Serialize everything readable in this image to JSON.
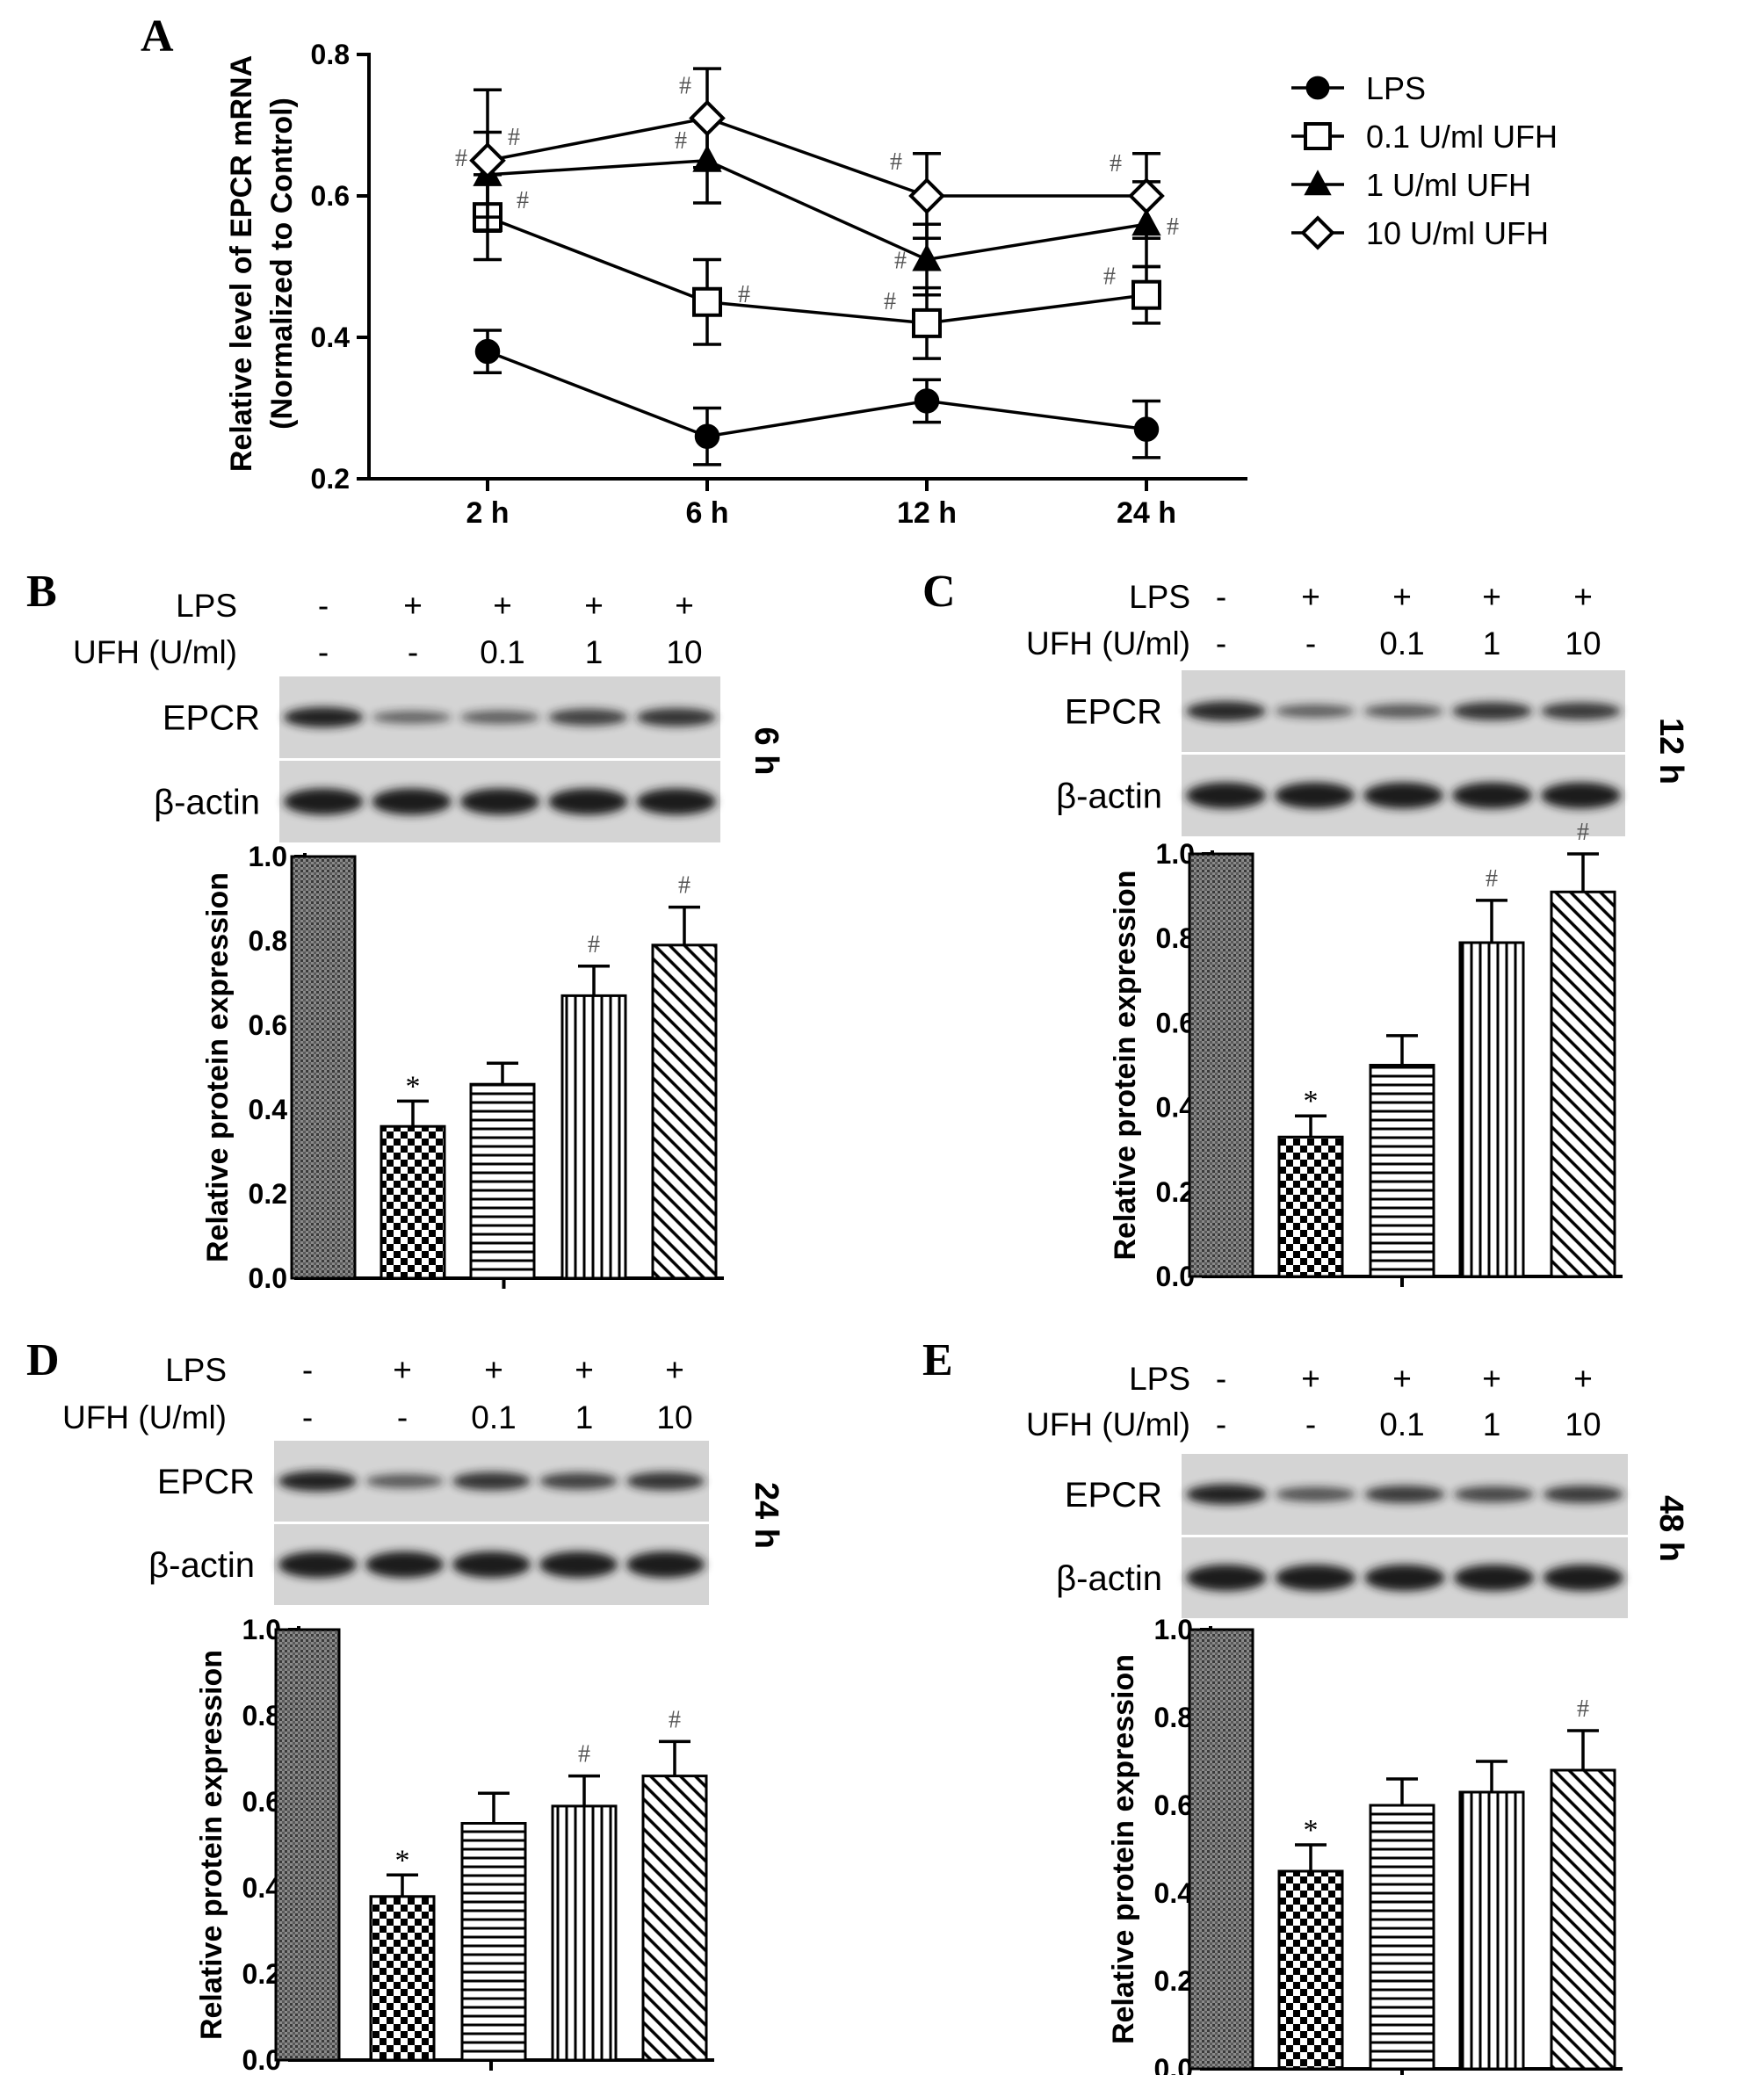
{
  "colors": {
    "ink": "#000000",
    "blot_bg": "#d4d4d4",
    "band": "#1c1c1c",
    "hash_mark": "#555555"
  },
  "panel_a": {
    "letter": "A",
    "ylabel_line1": "Relative level of EPCR mRNA",
    "ylabel_line2": "(Normalized to Control)",
    "legend": [
      "LPS",
      "0.1 U/ml UFH",
      "1 U/ml UFH",
      "10 U/ml UFH"
    ]
  },
  "blot_panels": [
    {
      "letter": "B",
      "time": "6 h",
      "cond_labels": [
        "LPS",
        "UFH (U/ml)"
      ],
      "lps": [
        "-",
        "+",
        "+",
        "+",
        "+"
      ],
      "ufh": [
        "-",
        "-",
        "0.1",
        "1",
        "10"
      ],
      "rows": [
        "EPCR",
        "β-actin"
      ],
      "ylabel": "Relative protein expression",
      "band_strength": [
        0.95,
        0.4,
        0.45,
        0.7,
        0.8
      ]
    },
    {
      "letter": "C",
      "time": "12 h",
      "cond_labels": [
        "LPS",
        "UFH (U/ml)"
      ],
      "lps": [
        "-",
        "+",
        "+",
        "+",
        "+"
      ],
      "ufh": [
        "-",
        "-",
        "0.1",
        "1",
        "10"
      ],
      "rows": [
        "EPCR",
        "β-actin"
      ],
      "ylabel": "Relative protein expression",
      "band_strength": [
        0.9,
        0.45,
        0.5,
        0.8,
        0.75
      ]
    },
    {
      "letter": "D",
      "time": "24 h",
      "cond_labels": [
        "LPS",
        "UFH (U/ml)"
      ],
      "lps": [
        "-",
        "+",
        "+",
        "+",
        "+"
      ],
      "ufh": [
        "-",
        "-",
        "0.1",
        "1",
        "10"
      ],
      "rows": [
        "EPCR",
        "β-actin"
      ],
      "ylabel": "Relative protein expression",
      "band_strength": [
        0.95,
        0.5,
        0.8,
        0.7,
        0.8
      ]
    },
    {
      "letter": "E",
      "time": "48 h",
      "cond_labels": [
        "LPS",
        "UFH (U/ml)"
      ],
      "lps": [
        "-",
        "+",
        "+",
        "+",
        "+"
      ],
      "ufh": [
        "-",
        "-",
        "0.1",
        "1",
        "10"
      ],
      "rows": [
        "EPCR",
        "β-actin"
      ],
      "ylabel": "Relative protein expression",
      "band_strength": [
        0.95,
        0.55,
        0.75,
        0.65,
        0.75
      ]
    }
  ],
  "chart_data": [
    {
      "panel": "A",
      "type": "line",
      "categories": [
        "2 h",
        "6 h",
        "12 h",
        "24 h"
      ],
      "ylabel": "Relative level of EPCR mRNA (Normalized to Control)",
      "ylim": [
        0.2,
        0.8
      ],
      "yticks": [
        0.2,
        0.4,
        0.6,
        0.8
      ],
      "grid": false,
      "legend_position": "top-right",
      "series": [
        {
          "name": "LPS",
          "marker": "filled-circle",
          "values": [
            0.38,
            0.26,
            0.31,
            0.27
          ],
          "errors": [
            0.03,
            0.04,
            0.03,
            0.04
          ],
          "marks": [
            "",
            "",
            "",
            ""
          ]
        },
        {
          "name": "0.1 U/ml UFH",
          "marker": "open-square",
          "values": [
            0.57,
            0.45,
            0.42,
            0.46
          ],
          "errors": [
            0.06,
            0.06,
            0.05,
            0.04
          ],
          "marks": [
            "#",
            "#",
            "#",
            "#"
          ]
        },
        {
          "name": "1 U/ml UFH",
          "marker": "filled-triangle",
          "values": [
            0.63,
            0.65,
            0.51,
            0.56
          ],
          "errors": [
            0.06,
            0.06,
            0.05,
            0.06
          ],
          "marks": [
            "#",
            "#",
            "#",
            "#"
          ]
        },
        {
          "name": "10 U/ml UFH",
          "marker": "open-diamond",
          "values": [
            0.65,
            0.71,
            0.6,
            0.6
          ],
          "errors": [
            0.1,
            0.07,
            0.06,
            0.06
          ],
          "marks": [
            "#",
            "#",
            "#",
            "#"
          ]
        }
      ]
    },
    {
      "panel": "B",
      "type": "bar",
      "ylabel": "Relative protein expression",
      "ylim": [
        0,
        1.0
      ],
      "yticks": [
        0.0,
        0.2,
        0.4,
        0.6,
        0.8,
        1.0
      ],
      "values": [
        1.0,
        0.36,
        0.46,
        0.67,
        0.79
      ],
      "errors": [
        0,
        0.06,
        0.05,
        0.07,
        0.09
      ],
      "marks": [
        "",
        "*",
        "",
        "#",
        "#"
      ]
    },
    {
      "panel": "C",
      "type": "bar",
      "ylabel": "Relative protein expression",
      "ylim": [
        0,
        1.0
      ],
      "yticks": [
        0.0,
        0.2,
        0.4,
        0.6,
        0.8,
        1.0
      ],
      "values": [
        1.0,
        0.33,
        0.5,
        0.79,
        0.91
      ],
      "errors": [
        0,
        0.05,
        0.07,
        0.1,
        0.09
      ],
      "marks": [
        "",
        "*",
        "",
        "#",
        "#"
      ]
    },
    {
      "panel": "D",
      "type": "bar",
      "ylabel": "Relative protein expression",
      "ylim": [
        0,
        1.0
      ],
      "yticks": [
        0.0,
        0.2,
        0.4,
        0.6,
        0.8,
        1.0
      ],
      "values": [
        1.0,
        0.38,
        0.55,
        0.59,
        0.66
      ],
      "errors": [
        0,
        0.05,
        0.07,
        0.07,
        0.08
      ],
      "marks": [
        "",
        "*",
        "",
        "#",
        "#"
      ]
    },
    {
      "panel": "E",
      "type": "bar",
      "ylabel": "Relative protein expression",
      "ylim": [
        0,
        1.0
      ],
      "yticks": [
        0.0,
        0.2,
        0.4,
        0.6,
        0.8,
        1.0
      ],
      "values": [
        1.0,
        0.45,
        0.6,
        0.63,
        0.68
      ],
      "errors": [
        0,
        0.06,
        0.06,
        0.07,
        0.09
      ],
      "marks": [
        "",
        "*",
        "",
        "",
        "#"
      ]
    }
  ]
}
